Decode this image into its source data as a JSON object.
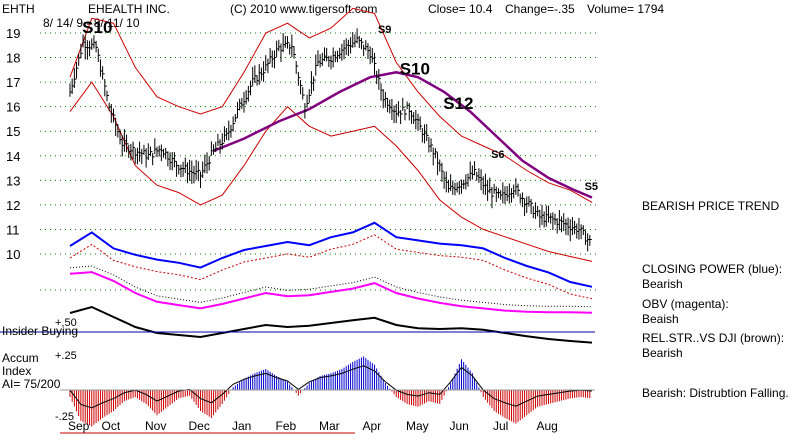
{
  "header": {
    "ticker": "EHTH",
    "company": "EHEALTH INC.",
    "copyright": "(C) 2010 www.tigersoft.com",
    "close": "Close=  10.4",
    "change": "Change=-.35",
    "volume": "Volume= 1794",
    "date_range": "8/ 14/ 9 - 8/ 11/ 10"
  },
  "signals": [
    {
      "label": "S10",
      "month_index": 0.05,
      "price": 19.0
    },
    {
      "label": "S9",
      "month_index": 6.85,
      "price": 19.0
    },
    {
      "label": "S10",
      "month_index": 7.35,
      "price": 17.3
    },
    {
      "label": "S12",
      "month_index": 8.35,
      "price": 15.9
    },
    {
      "label": "S6",
      "month_index": 9.45,
      "price": 13.9
    },
    {
      "label": "S5",
      "month_index": 11.6,
      "price": 12.6
    }
  ],
  "side_notes": {
    "price": "BEARISH PRICE TREND",
    "closing_power_title": "CLOSING POWER (blue):",
    "closing_power_value": "Bearish",
    "obv_title": "OBV (magenta):",
    "obv_value": "Beaish",
    "relstr_title": "REL.STR..VS DJI (brown):",
    "relstr_value": "Bearish",
    "accum_value": "Bearish:  Distrubtion Falling."
  },
  "insider_label": "Insider Buying",
  "accum_labels": {
    "title1": "Accum",
    "title2": "Index",
    "ai": "AI= 75/200",
    "plus50": "+.50",
    "plus25": "+.25",
    "minus25": "-.25"
  },
  "colors": {
    "price_bars": "#000000",
    "bands": "#cc0000",
    "ma": "#800080",
    "closing_power": "#0000ff",
    "obv": "#ff00ff",
    "relstr": "#000000",
    "accum_pos": "#0000cc",
    "accum_neg": "#cc0000",
    "insider_line": "#0000aa",
    "grid": "#008000"
  },
  "chart_data": {
    "type": "line",
    "title": "EHEALTH INC.",
    "x_tick_labels": [
      "Sep",
      "Oct",
      "Nov",
      "Dec",
      "Jan",
      "Feb",
      "Mar",
      "Apr",
      "May",
      "Jun",
      "Jul",
      "Aug"
    ],
    "y_tick_labels": [
      "19",
      "18",
      "17",
      "16",
      "15",
      "14",
      "13",
      "12",
      "11",
      "10"
    ],
    "ylim": [
      9.5,
      19.5
    ],
    "grid": true,
    "price_series": {
      "x_month": [
        0.0,
        0.3,
        0.6,
        0.9,
        1.2,
        1.5,
        1.8,
        2.1,
        2.4,
        2.7,
        3.0,
        3.3,
        3.6,
        3.9,
        4.2,
        4.5,
        4.8,
        5.1,
        5.4,
        5.7,
        6.0,
        6.3,
        6.6,
        6.9,
        7.2,
        7.5,
        7.8,
        8.1,
        8.4,
        8.7,
        9.0,
        9.3,
        9.6,
        9.9,
        10.2,
        10.5,
        10.8,
        11.1,
        11.4,
        11.7,
        12.0
      ],
      "close": [
        16.6,
        18.6,
        18.4,
        16.0,
        14.5,
        14.2,
        14.0,
        14.3,
        13.7,
        13.4,
        13.2,
        14.2,
        14.8,
        16.0,
        17.0,
        17.6,
        18.4,
        18.5,
        16.0,
        17.8,
        18.0,
        18.4,
        18.7,
        18.2,
        16.4,
        15.8,
        15.9,
        15.0,
        14.0,
        12.6,
        12.9,
        13.3,
        12.6,
        12.3,
        12.7,
        12.1,
        11.5,
        11.4,
        11.2,
        11.0,
        10.4
      ]
    },
    "moving_average": {
      "x_month": [
        3.3,
        4.0,
        4.8,
        5.5,
        6.2,
        6.9,
        7.5,
        8.0,
        8.6,
        9.2,
        9.8,
        10.4,
        11.0,
        11.6,
        12.0
      ],
      "values": [
        14.2,
        14.7,
        15.4,
        15.9,
        16.6,
        17.2,
        17.4,
        17.2,
        16.6,
        15.8,
        14.8,
        13.8,
        13.1,
        12.6,
        12.3
      ]
    },
    "upper_band": {
      "x_month": [
        0.0,
        0.5,
        1.0,
        1.5,
        2.0,
        2.5,
        3.0,
        3.5,
        4.0,
        4.5,
        5.0,
        5.5,
        6.0,
        6.5,
        7.0,
        7.5,
        8.0,
        8.5,
        9.0,
        9.5,
        10.0,
        10.5,
        11.0,
        11.5,
        12.0
      ],
      "values": [
        17.2,
        19.6,
        19.4,
        17.6,
        16.4,
        16.0,
        15.7,
        16.0,
        17.4,
        19.0,
        19.4,
        18.8,
        19.2,
        20.0,
        19.8,
        17.8,
        16.6,
        15.6,
        14.8,
        14.4,
        14.0,
        13.4,
        12.9,
        12.6,
        12.1
      ]
    },
    "lower_band": {
      "x_month": [
        0.0,
        0.5,
        1.0,
        1.5,
        2.0,
        2.5,
        3.0,
        3.5,
        4.0,
        4.5,
        5.0,
        5.5,
        6.0,
        6.5,
        7.0,
        7.5,
        8.0,
        8.5,
        9.0,
        9.5,
        10.0,
        10.5,
        11.0,
        11.5,
        12.0
      ],
      "values": [
        15.8,
        17.0,
        15.6,
        13.6,
        12.8,
        12.5,
        12.0,
        12.4,
        13.6,
        15.0,
        16.0,
        15.2,
        14.8,
        15.0,
        15.2,
        14.4,
        13.4,
        12.2,
        11.5,
        11.0,
        10.7,
        10.4,
        10.1,
        9.9,
        9.7
      ]
    },
    "closing_power": {
      "x_month": [
        0.0,
        0.5,
        1.0,
        1.5,
        2.0,
        2.5,
        3.0,
        3.5,
        4.0,
        4.5,
        5.0,
        5.5,
        6.0,
        6.5,
        7.0,
        7.5,
        8.0,
        8.5,
        9.0,
        9.5,
        10.0,
        10.5,
        11.0,
        11.5,
        12.0
      ],
      "values": [
        0.55,
        0.72,
        0.52,
        0.44,
        0.38,
        0.34,
        0.28,
        0.4,
        0.5,
        0.55,
        0.6,
        0.56,
        0.66,
        0.72,
        0.84,
        0.66,
        0.62,
        0.58,
        0.56,
        0.52,
        0.4,
        0.3,
        0.22,
        0.1,
        0.04
      ]
    },
    "obv": {
      "x_month": [
        0.0,
        0.5,
        1.0,
        1.5,
        2.0,
        2.5,
        3.0,
        3.5,
        4.0,
        4.5,
        5.0,
        5.5,
        6.0,
        6.5,
        7.0,
        7.5,
        8.0,
        8.5,
        9.0,
        9.5,
        10.0,
        10.5,
        11.0,
        11.5,
        12.0
      ],
      "values": [
        0.75,
        0.78,
        0.62,
        0.4,
        0.24,
        0.18,
        0.12,
        0.2,
        0.3,
        0.4,
        0.34,
        0.36,
        0.42,
        0.48,
        0.58,
        0.4,
        0.3,
        0.22,
        0.16,
        0.12,
        0.08,
        0.06,
        0.05,
        0.05,
        0.04
      ]
    },
    "relstr": {
      "x_month": [
        0.0,
        0.5,
        1.0,
        1.5,
        2.0,
        2.5,
        3.0,
        3.5,
        4.0,
        4.5,
        5.0,
        5.5,
        6.0,
        6.5,
        7.0,
        7.5,
        8.0,
        8.5,
        9.0,
        9.5,
        10.0,
        10.5,
        11.0,
        11.5,
        12.0
      ],
      "values": [
        0.8,
        0.95,
        0.7,
        0.45,
        0.3,
        0.25,
        0.2,
        0.3,
        0.4,
        0.5,
        0.45,
        0.48,
        0.55,
        0.62,
        0.68,
        0.5,
        0.42,
        0.4,
        0.42,
        0.38,
        0.3,
        0.22,
        0.15,
        0.1,
        0.06
      ]
    },
    "accum_index": {
      "x_month": [
        0.0,
        0.25,
        0.5,
        0.75,
        1.0,
        1.25,
        1.5,
        1.75,
        2.0,
        2.25,
        2.5,
        2.75,
        3.0,
        3.25,
        3.5,
        3.75,
        4.0,
        4.25,
        4.5,
        4.75,
        5.0,
        5.25,
        5.5,
        5.75,
        6.0,
        6.25,
        6.5,
        6.75,
        7.0,
        7.25,
        7.5,
        7.75,
        8.0,
        8.25,
        8.5,
        8.75,
        9.0,
        9.25,
        9.5,
        9.75,
        10.0,
        10.25,
        10.5,
        10.75,
        11.0,
        11.25,
        11.5,
        11.75,
        12.0
      ],
      "values": [
        -0.05,
        -0.22,
        -0.26,
        -0.2,
        -0.15,
        -0.08,
        -0.05,
        -0.1,
        -0.18,
        -0.12,
        -0.06,
        -0.04,
        -0.15,
        -0.2,
        -0.1,
        0.02,
        0.08,
        0.12,
        0.15,
        0.1,
        0.06,
        -0.04,
        0.05,
        0.1,
        0.12,
        0.15,
        0.2,
        0.24,
        0.18,
        0.05,
        -0.05,
        -0.1,
        -0.12,
        -0.08,
        -0.1,
        0.05,
        0.22,
        0.12,
        -0.05,
        -0.15,
        -0.2,
        -0.24,
        -0.18,
        -0.12,
        -0.1,
        -0.08,
        -0.06,
        -0.05,
        -0.06
      ]
    }
  }
}
